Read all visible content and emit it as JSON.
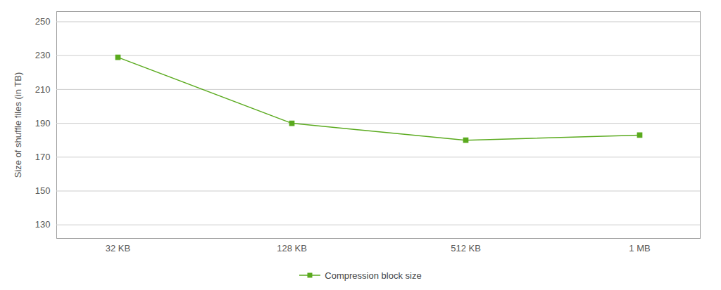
{
  "chart_data": {
    "type": "line",
    "categories": [
      "32 KB",
      "128 KB",
      "512 KB",
      "1 MB"
    ],
    "series": [
      {
        "name": "Compression block size",
        "color": "#5aaa1e",
        "marker": "square",
        "values": [
          229,
          190,
          180,
          183
        ]
      }
    ],
    "ylabel": "Size of shuffle files (in TB)",
    "ylim": [
      122,
      256
    ],
    "yticks": [
      130,
      150,
      170,
      190,
      210,
      230,
      250
    ],
    "grid": true,
    "legend": "bottom"
  }
}
